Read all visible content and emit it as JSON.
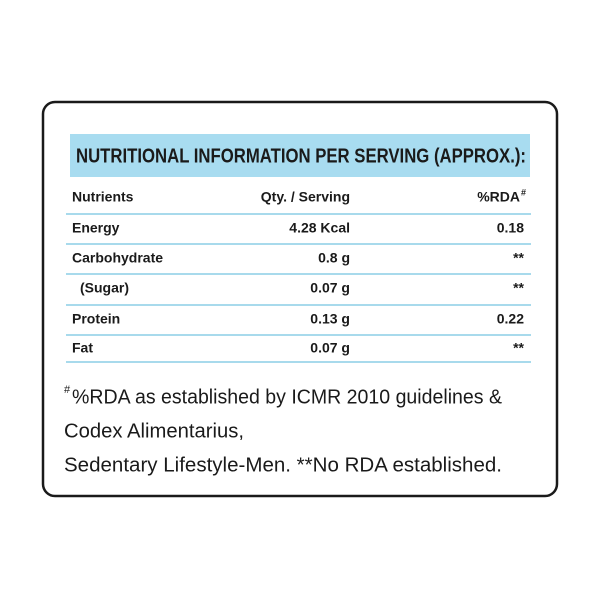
{
  "title": "NUTRITIONAL INFORMATION PER SERVING (APPROX.):",
  "table": {
    "header": [
      "Nutrients",
      "Qty. / Serving",
      "%RDA"
    ],
    "header_mark": "#",
    "rows": [
      [
        "Energy",
        "4.28 Kcal",
        "0.18"
      ],
      [
        "Carbohydrate",
        "0.8 g",
        "**"
      ],
      [
        "(Sugar)",
        "0.07 g",
        "**"
      ],
      [
        "Protein",
        "0.13 g",
        "0.22"
      ],
      [
        "Fat",
        "0.07 g",
        "**"
      ]
    ]
  },
  "footnote": {
    "mark": "#",
    "lines": [
      "%RDA as established by ICMR 2010 guidelines &",
      "Codex Alimentarius,",
      "Sedentary Lifestyle-Men. **No RDA established."
    ]
  }
}
